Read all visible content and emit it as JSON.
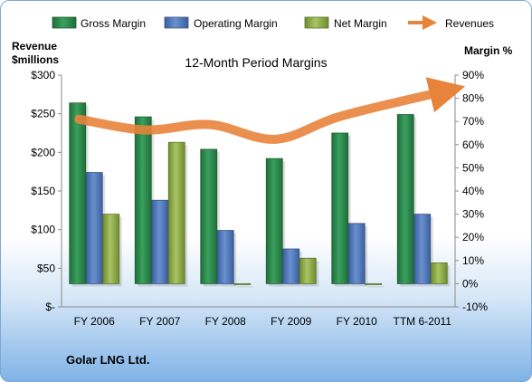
{
  "chart_data": {
    "type": "bar",
    "title": "12-Month Period Margins",
    "company": "Golar LNG Ltd.",
    "categories": [
      "FY 2006",
      "FY 2007",
      "FY 2008",
      "FY 2009",
      "FY 2010",
      "TTM 6-2011"
    ],
    "y_left_label_line1": "Revenue",
    "y_left_label_line2": "$millions",
    "y_right_label": "Margin %",
    "y_left_ticks": [
      "$300",
      "$250",
      "$200",
      "$150",
      "$100",
      "$50",
      "$-"
    ],
    "y_right_ticks": [
      "90%",
      "80%",
      "70%",
      "60%",
      "50%",
      "40%",
      "30%",
      "20%",
      "10%",
      "0%",
      "-10%"
    ],
    "y_left_lim": [
      0,
      300
    ],
    "y_right_lim": [
      -10,
      90
    ],
    "grid": false,
    "legend_position": "top",
    "series": [
      {
        "name": "Gross Margin",
        "axis": "right",
        "color": "#2e8b4f",
        "values": [
          78,
          72,
          58,
          54,
          65,
          73
        ]
      },
      {
        "name": "Operating Margin",
        "axis": "right",
        "color": "#4f75b8",
        "values": [
          48,
          36,
          23,
          15,
          26,
          30
        ]
      },
      {
        "name": "Net Margin",
        "axis": "right",
        "color": "#8fad4a",
        "values": [
          30,
          61,
          0,
          11,
          0,
          9
        ]
      },
      {
        "name": "Revenues",
        "axis": "left",
        "color": "#e8833a",
        "type": "line",
        "values": [
          243,
          229,
          236,
          217,
          247,
          280
        ]
      }
    ]
  }
}
